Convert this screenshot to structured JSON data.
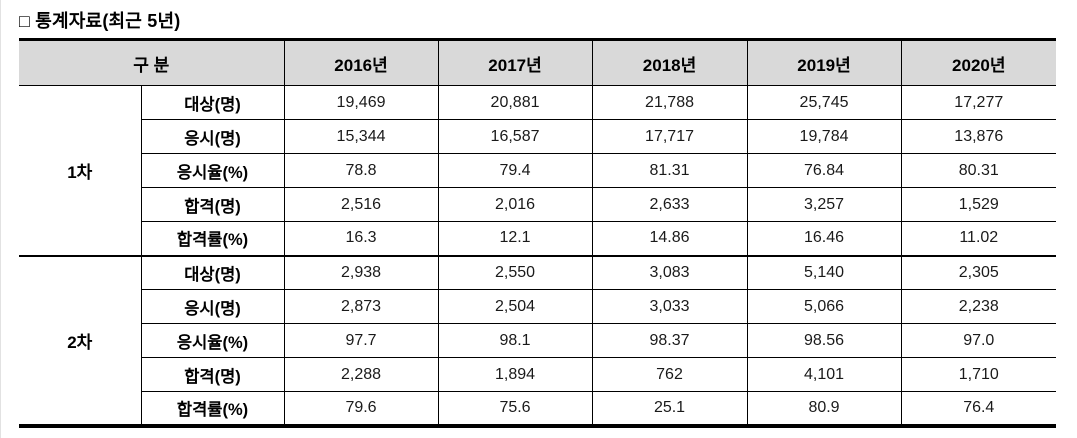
{
  "title": "□ 통계자료(최근 5년)",
  "colors": {
    "header_bg": "#d9d9d9",
    "border": "#000000"
  },
  "table": {
    "header": {
      "category": "구 분",
      "years": [
        "2016년",
        "2017년",
        "2018년",
        "2019년",
        "2020년"
      ]
    },
    "groups": [
      {
        "name": "1차",
        "rows": [
          {
            "label": "대상(명)",
            "values": [
              "19,469",
              "20,881",
              "21,788",
              "25,745",
              "17,277"
            ]
          },
          {
            "label": "응시(명)",
            "values": [
              "15,344",
              "16,587",
              "17,717",
              "19,784",
              "13,876"
            ]
          },
          {
            "label": "응시율(%)",
            "values": [
              "78.8",
              "79.4",
              "81.31",
              "76.84",
              "80.31"
            ]
          },
          {
            "label": "합격(명)",
            "values": [
              "2,516",
              "2,016",
              "2,633",
              "3,257",
              "1,529"
            ]
          },
          {
            "label": "합격률(%)",
            "values": [
              "16.3",
              "12.1",
              "14.86",
              "16.46",
              "11.02"
            ]
          }
        ]
      },
      {
        "name": "2차",
        "rows": [
          {
            "label": "대상(명)",
            "values": [
              "2,938",
              "2,550",
              "3,083",
              "5,140",
              "2,305"
            ]
          },
          {
            "label": "응시(명)",
            "values": [
              "2,873",
              "2,504",
              "3,033",
              "5,066",
              "2,238"
            ]
          },
          {
            "label": "응시율(%)",
            "values": [
              "97.7",
              "98.1",
              "98.37",
              "98.56",
              "97.0"
            ]
          },
          {
            "label": "합격(명)",
            "values": [
              "2,288",
              "1,894",
              "762",
              "4,101",
              "1,710"
            ]
          },
          {
            "label": "합격률(%)",
            "values": [
              "79.6",
              "75.6",
              "25.1",
              "80.9",
              "76.4"
            ]
          }
        ]
      }
    ]
  }
}
